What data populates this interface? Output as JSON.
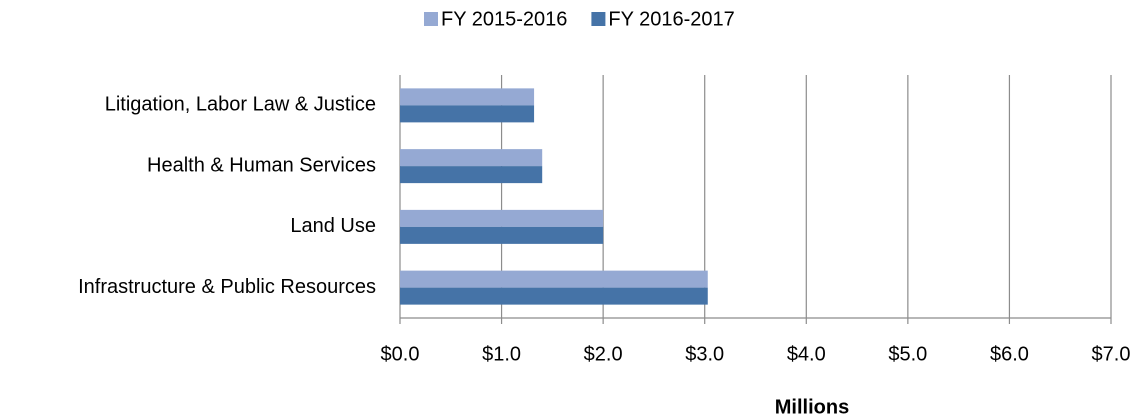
{
  "chart_data": {
    "type": "barh",
    "categories": [
      "Litigation, Labor Law & Justice",
      "Health & Human Services",
      "Land Use",
      "Infrastructure & Public Resources"
    ],
    "series": [
      {
        "name": "FY 2015-2016",
        "color": "#95a9d3",
        "values": [
          1.32,
          1.4,
          2.0,
          3.03
        ]
      },
      {
        "name": "FY 2016-2017",
        "color": "#4573a7",
        "values": [
          1.32,
          1.4,
          2.0,
          3.03
        ]
      }
    ],
    "xlabel": "Millions",
    "xlim": [
      0,
      7
    ],
    "xticks": [
      {
        "value": 0,
        "label": "$0.0"
      },
      {
        "value": 1,
        "label": "$1.0"
      },
      {
        "value": 2,
        "label": "$2.0"
      },
      {
        "value": 3,
        "label": "$3.0"
      },
      {
        "value": 4,
        "label": "$4.0"
      },
      {
        "value": 5,
        "label": "$5.0"
      },
      {
        "value": 6,
        "label": "$6.0"
      },
      {
        "value": 7,
        "label": "$7.0"
      }
    ],
    "grid": true,
    "legend": "top"
  }
}
